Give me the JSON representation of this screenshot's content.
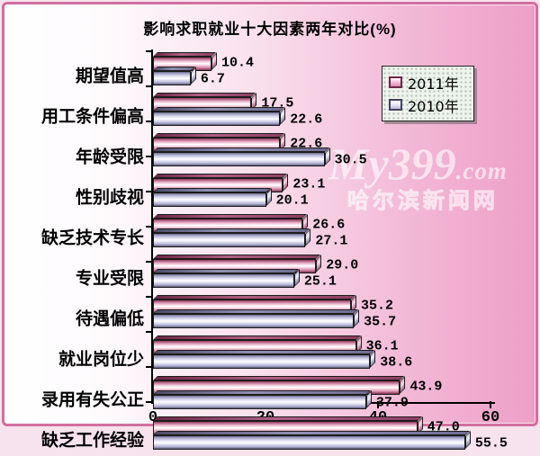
{
  "title": "影响求职就业十大因素两年对比(%)",
  "legend": {
    "items": [
      {
        "label": "2011年",
        "color": "#d987ae"
      },
      {
        "label": "2010年",
        "color": "#c9c8e4"
      }
    ]
  },
  "watermark": {
    "brand": "My399",
    "brand_suffix": ".com",
    "subtitle": "哈尔滨新闻网"
  },
  "colors": {
    "frame_border": "#d26f9f",
    "panel_right_pink": "#ee9fc7",
    "bar_2011_main": "#c06f92",
    "bar_2010_main": "#a3a2c6",
    "axis": "#000000"
  },
  "chart_data": {
    "type": "bar",
    "orientation": "horizontal",
    "title": "影响求职就业十大因素两年对比(%)",
    "categories": [
      "期望值高",
      "用工条件偏高",
      "年龄受限",
      "性别歧视",
      "缺乏技术专长",
      "专业受限",
      "待遇偏低",
      "就业岗位少",
      "录用有失公正",
      "缺乏工作经验"
    ],
    "series": [
      {
        "name": "2011年",
        "values": [
          10.4,
          17.5,
          22.6,
          23.1,
          26.6,
          29.0,
          35.2,
          36.1,
          43.9,
          47.0
        ],
        "labels": [
          "10.4",
          "17.5",
          "22.6",
          "23.1",
          "26.6",
          "29.0",
          "35.2",
          "36.1",
          "43.9",
          "47.0"
        ]
      },
      {
        "name": "2010年",
        "values": [
          6.7,
          22.6,
          30.5,
          20.1,
          27.1,
          25.1,
          35.7,
          38.6,
          37.9,
          55.5
        ],
        "labels": [
          "6.7",
          "22.6",
          "30.5",
          "20.1",
          "27.1",
          "25.1",
          "35.7",
          "38.6",
          "37.9",
          "55.5"
        ]
      }
    ],
    "xlim": [
      0,
      60
    ],
    "xticks": [
      0,
      20,
      40,
      60
    ],
    "legend_position": "top-right",
    "grid": false
  }
}
